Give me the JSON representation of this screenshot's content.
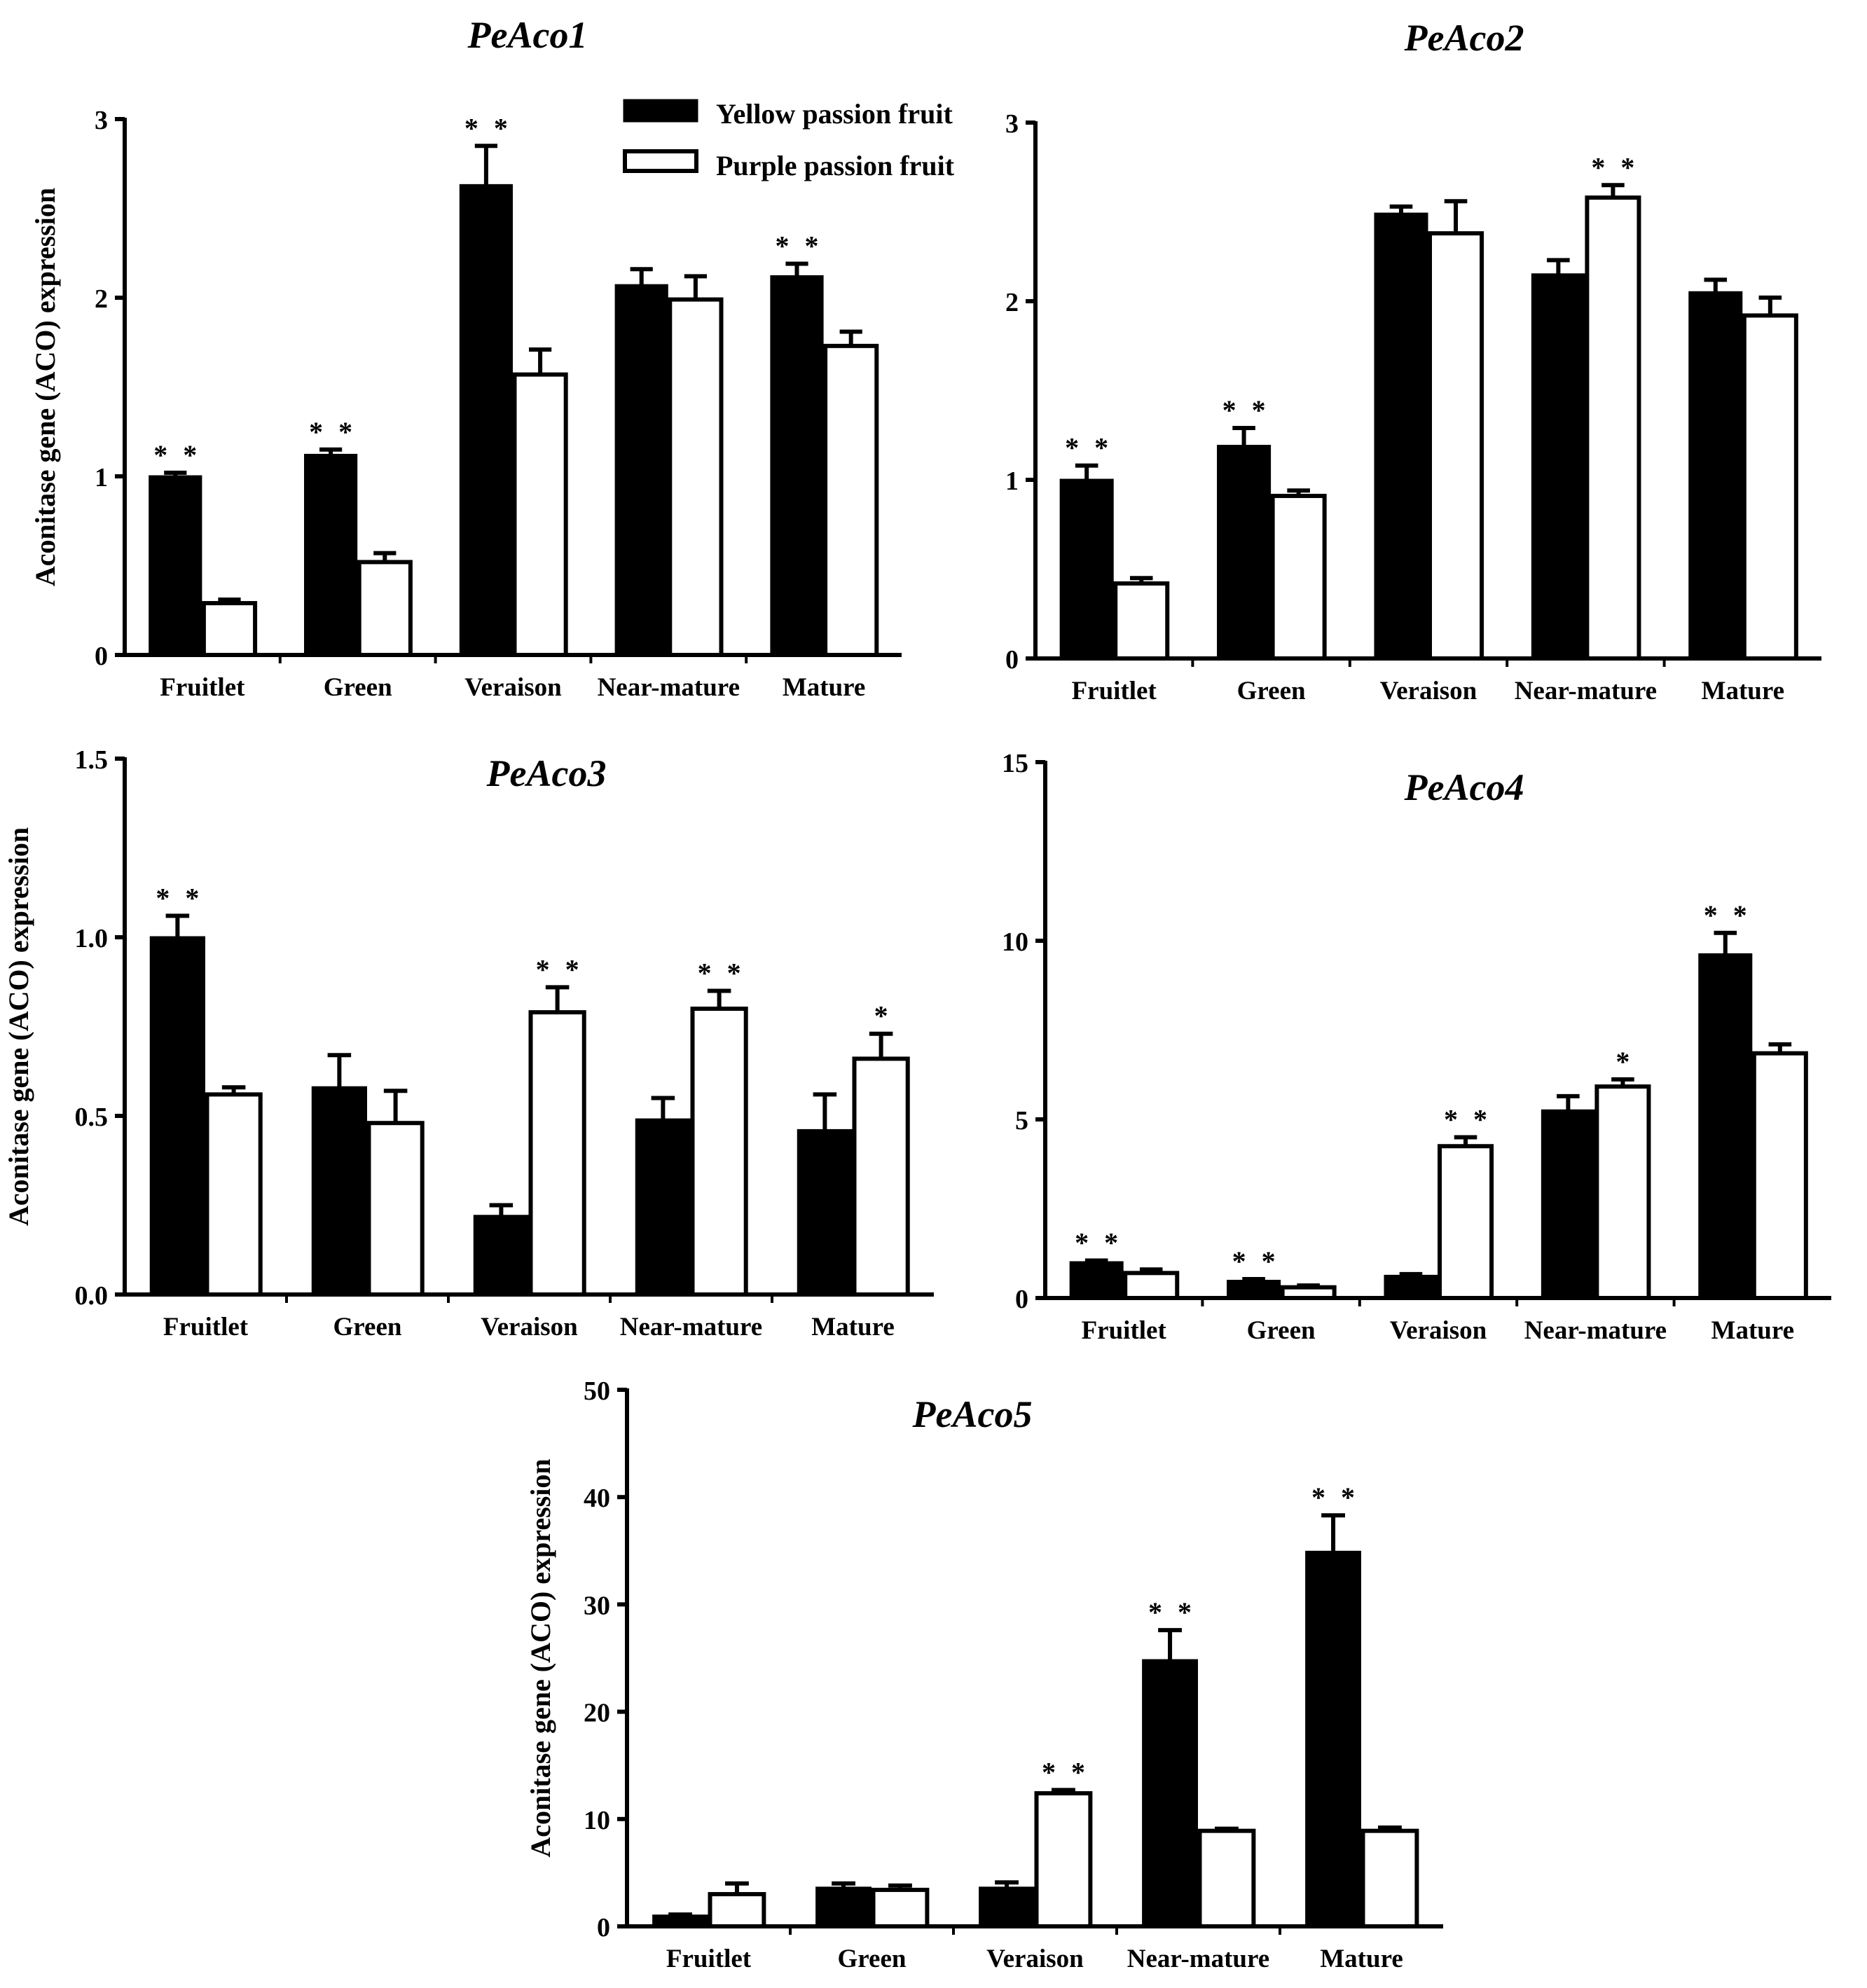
{
  "chart_data": [
    {
      "type": "bar",
      "title": "PeAco1",
      "ylabel": "Aconitase gene (ACO) expression",
      "xlabel": "",
      "categories": [
        "Fruitlet",
        "Green",
        "Veraison",
        "Near-mature",
        "Mature"
      ],
      "ylim": [
        0,
        3
      ],
      "yticks": [
        "0",
        "1",
        "2",
        "3"
      ],
      "ytick_values": [
        0,
        1,
        2,
        3
      ],
      "series": [
        {
          "name": "Yellow passion fruit",
          "color": "#000000",
          "values": [
            1.0,
            1.12,
            2.63,
            2.07,
            2.12
          ],
          "errors": [
            0.02,
            0.03,
            0.22,
            0.09,
            0.07
          ]
        },
        {
          "name": "Purple passion fruit",
          "color": "#ffffff",
          "values": [
            0.29,
            0.52,
            1.57,
            1.99,
            1.73
          ],
          "errors": [
            0.02,
            0.05,
            0.14,
            0.13,
            0.08
          ]
        }
      ],
      "significance": [
        {
          "category": "Fruitlet",
          "label": "**"
        },
        {
          "category": "Green",
          "label": "**"
        },
        {
          "category": "Veraison",
          "label": "**"
        },
        {
          "category": "Mature",
          "label": "**"
        }
      ]
    },
    {
      "type": "bar",
      "title": "PeAco2",
      "ylabel": "",
      "xlabel": "",
      "categories": [
        "Fruitlet",
        "Green",
        "Veraison",
        "Near-mature",
        "Mature"
      ],
      "ylim": [
        0,
        3
      ],
      "yticks": [
        "0",
        "1",
        "2",
        "3"
      ],
      "ytick_values": [
        0,
        1,
        2,
        3
      ],
      "series": [
        {
          "name": "Yellow passion fruit",
          "color": "#000000",
          "values": [
            1.0,
            1.19,
            2.49,
            2.15,
            2.05
          ],
          "errors": [
            0.08,
            0.1,
            0.04,
            0.08,
            0.07
          ]
        },
        {
          "name": "Purple passion fruit",
          "color": "#ffffff",
          "values": [
            0.42,
            0.91,
            2.38,
            2.58,
            1.92
          ],
          "errors": [
            0.03,
            0.03,
            0.18,
            0.07,
            0.1
          ]
        }
      ],
      "significance": [
        {
          "category": "Fruitlet",
          "label": "**"
        },
        {
          "category": "Green",
          "label": "**"
        },
        {
          "category": "Near-mature",
          "label": "**"
        }
      ]
    },
    {
      "type": "bar",
      "title": "PeAco3",
      "ylabel": "Aconitase gene (ACO) expression",
      "xlabel": "",
      "categories": [
        "Fruitlet",
        "Green",
        "Veraison",
        "Near-mature",
        "Mature"
      ],
      "ylim": [
        0,
        1.5
      ],
      "yticks": [
        "0.0",
        "0.5",
        "1.0",
        "1.5"
      ],
      "ytick_values": [
        0,
        0.5,
        1.0,
        1.5
      ],
      "series": [
        {
          "name": "Yellow passion fruit",
          "color": "#000000",
          "values": [
            1.0,
            0.58,
            0.22,
            0.49,
            0.46
          ],
          "errors": [
            0.06,
            0.09,
            0.03,
            0.06,
            0.1
          ]
        },
        {
          "name": "Purple passion fruit",
          "color": "#ffffff",
          "values": [
            0.56,
            0.48,
            0.79,
            0.8,
            0.66
          ],
          "errors": [
            0.02,
            0.09,
            0.07,
            0.05,
            0.07
          ]
        }
      ],
      "significance": [
        {
          "category": "Fruitlet",
          "label": "**"
        },
        {
          "category": "Veraison",
          "label": "**"
        },
        {
          "category": "Near-mature",
          "label": "**"
        },
        {
          "category": "Mature",
          "label": "*"
        }
      ]
    },
    {
      "type": "bar",
      "title": "PeAco4",
      "ylabel": "",
      "xlabel": "",
      "categories": [
        "Fruitlet",
        "Green",
        "Veraison",
        "Near-mature",
        "Mature"
      ],
      "ylim": [
        0,
        15
      ],
      "yticks": [
        "0",
        "5",
        "10",
        "15"
      ],
      "ytick_values": [
        0,
        5,
        10,
        15
      ],
      "series": [
        {
          "name": "Yellow passion fruit",
          "color": "#000000",
          "values": [
            1.0,
            0.48,
            0.62,
            5.25,
            9.62
          ],
          "errors": [
            0.05,
            0.05,
            0.05,
            0.4,
            0.6
          ]
        },
        {
          "name": "Purple passion fruit",
          "color": "#ffffff",
          "values": [
            0.7,
            0.3,
            4.25,
            5.92,
            6.85
          ],
          "errors": [
            0.1,
            0.05,
            0.25,
            0.2,
            0.25
          ]
        }
      ],
      "significance": [
        {
          "category": "Fruitlet",
          "label": "**"
        },
        {
          "category": "Green",
          "label": "**"
        },
        {
          "category": "Veraison",
          "label": "**"
        },
        {
          "category": "Near-mature",
          "label": "*"
        },
        {
          "category": "Mature",
          "label": "**"
        }
      ]
    },
    {
      "type": "bar",
      "title": "PeAco5",
      "ylabel": "Aconitase gene (ACO) expression",
      "xlabel": "",
      "categories": [
        "Fruitlet",
        "Green",
        "Veraison",
        "Near-mature",
        "Mature"
      ],
      "ylim": [
        0,
        50
      ],
      "yticks": [
        "0",
        "10",
        "20",
        "30",
        "40",
        "50"
      ],
      "ytick_values": [
        0,
        10,
        20,
        30,
        40,
        50
      ],
      "series": [
        {
          "name": "Yellow passion fruit",
          "color": "#000000",
          "values": [
            1.0,
            3.6,
            3.6,
            24.8,
            34.9
          ],
          "errors": [
            0.1,
            0.4,
            0.5,
            2.8,
            3.4
          ]
        },
        {
          "name": "Purple passion fruit",
          "color": "#ffffff",
          "values": [
            3.0,
            3.4,
            12.4,
            8.9,
            8.9
          ],
          "errors": [
            1.0,
            0.4,
            0.3,
            0.2,
            0.3
          ]
        }
      ],
      "significance": [
        {
          "category": "Veraison",
          "label": "**"
        },
        {
          "category": "Near-mature",
          "label": "**"
        },
        {
          "category": "Mature",
          "label": "**"
        }
      ]
    }
  ],
  "legend": {
    "items": [
      {
        "label": "Yellow passion fruit",
        "fill": "#000000"
      },
      {
        "label": "Purple passion fruit",
        "fill": "#ffffff"
      }
    ]
  }
}
